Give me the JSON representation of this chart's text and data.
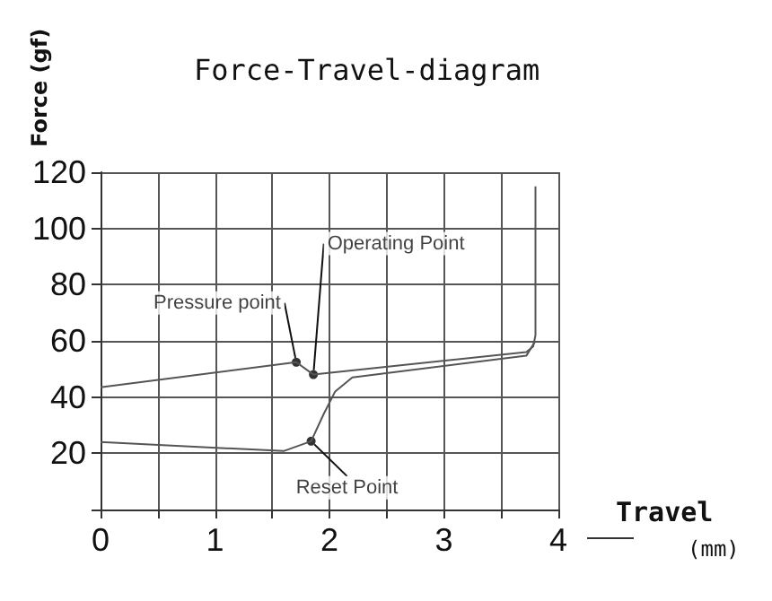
{
  "chart_data": {
    "type": "line",
    "title": "Force-Travel-diagram",
    "xlabel": "Travel (mm)",
    "ylabel": "Force (gf)",
    "series": [
      {
        "color": "#555555",
        "x": [
          0,
          1.71,
          1.86,
          3.72,
          3.78,
          3.8,
          3.8
        ],
        "values": [
          43.5,
          52.4,
          48,
          56,
          58,
          62,
          115
        ]
      },
      {
        "color": "#555555",
        "x": [
          0,
          1.6,
          1.84,
          1.95,
          2.05,
          2.2,
          3.72,
          3.8
        ],
        "values": [
          24,
          20.8,
          24.3,
          34,
          42,
          47,
          54.7,
          60
        ]
      }
    ],
    "annotations": [
      {
        "text": "Pressure point",
        "x": 1.71,
        "y": 52.4
      },
      {
        "text": "Operating Point",
        "x": 1.86,
        "y": 48
      },
      {
        "text": "Reset Point",
        "x": 1.84,
        "y": 24.3
      }
    ],
    "xlim": [
      0,
      4
    ],
    "xticks": [
      0,
      {
        "value": 0.5,
        "label": null
      },
      1,
      {
        "value": 1.5,
        "label": null
      },
      2,
      {
        "value": 2.5,
        "label": null
      },
      3,
      {
        "value": 3.5,
        "label": null
      },
      4
    ],
    "ylim": [
      0,
      120
    ],
    "yticks": [
      {
        "value": 0,
        "label": null
      },
      20,
      40,
      60,
      80,
      100,
      120
    ],
    "grid": true,
    "marker": "none",
    "line_style": "solid"
  }
}
